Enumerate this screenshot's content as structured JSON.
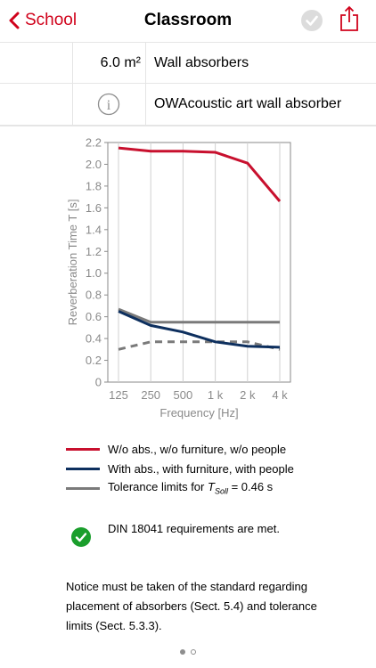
{
  "nav": {
    "back_label": "School",
    "title": "Classroom",
    "accent_color": "#d0021b",
    "check_icon": "check-circle-icon",
    "share_icon": "share-icon"
  },
  "rows": {
    "area_value": "6.0 m²",
    "area_label": "Wall absorbers",
    "product_icon": "info-icon",
    "product_label": "OWAcoustic art wall absorber"
  },
  "chart_data": {
    "type": "line",
    "categories": [
      "125",
      "250",
      "500",
      "1 k",
      "2 k",
      "4 k"
    ],
    "xlabel": "Frequency [Hz]",
    "ylabel": "Reverberation Time  T  [s]",
    "ylim": [
      0,
      2.2
    ],
    "yticks": [
      "0",
      "0.2",
      "0.4",
      "0.6",
      "0.8",
      "1.0",
      "1.2",
      "1.4",
      "1.6",
      "1.8",
      "2.0",
      "2.2"
    ],
    "grid": "vertical",
    "series": [
      {
        "name": "W/o abs., w/o furniture, w/o people",
        "color": "#c8102e",
        "values": [
          2.15,
          2.12,
          2.12,
          2.11,
          2.01,
          1.66
        ]
      },
      {
        "name": "With abs., with furniture, with people",
        "color": "#0d2f5e",
        "values": [
          0.65,
          0.52,
          0.46,
          0.37,
          0.33,
          0.32
        ]
      },
      {
        "name": "Tolerance limits for T_Soll = 0.46 s",
        "color": "#7a7a7a",
        "upper": [
          0.67,
          0.55,
          0.55,
          0.55,
          0.55,
          0.55
        ],
        "lower": [
          0.3,
          0.37,
          0.37,
          0.37,
          0.37,
          0.3
        ]
      }
    ]
  },
  "legend": {
    "item1": "W/o abs., w/o furniture, w/o people",
    "item2": "With abs., with furniture, with people",
    "item3_prefix": "Tolerance limits for ",
    "item3_t": "T",
    "item3_sub": "Soll",
    "item3_suffix": " = 0.46 s"
  },
  "status": {
    "icon": "check-circle-icon",
    "text": "DIN 18041 requirements are met.",
    "color": "#1a9e2c"
  },
  "notice": "Notice must be taken of the standard regarding placement of absorbers (Sect. 5.4) and tolerance limits (Sect. 5.3.3).",
  "pager": {
    "pages": 2,
    "current": 1
  }
}
